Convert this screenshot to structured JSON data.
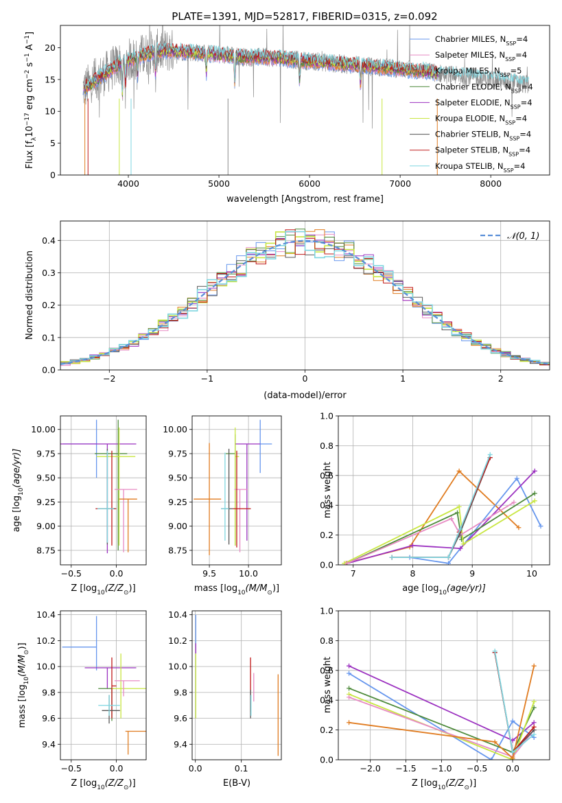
{
  "figure": {
    "title": "PLATE=1391, MJD=52817, FIBERID=0315, z=0.092"
  },
  "legend_spectrum": [
    {
      "label": "Chabrier MILES, N",
      "sub": "SSP",
      "tail": "=4",
      "color": "#6495ed"
    },
    {
      "label": "Salpeter MILES, N",
      "sub": "SSP",
      "tail": "=4",
      "color": "#e78ac3"
    },
    {
      "label": "Kroupa MILES, N",
      "sub": "SSP",
      "tail": "=5",
      "color": "#e07b1f"
    },
    {
      "label": "Chabrier ELODIE, N",
      "sub": "SSP",
      "tail": "=4",
      "color": "#4d8a3a"
    },
    {
      "label": "Salpeter ELODIE, N",
      "sub": "SSP",
      "tail": "=4",
      "color": "#9b30c0"
    },
    {
      "label": "Kroupa ELODIE, N",
      "sub": "SSP",
      "tail": "=4",
      "color": "#c8e640"
    },
    {
      "label": "Chabrier STELIB, N",
      "sub": "SSP",
      "tail": "=4",
      "color": "#555555"
    },
    {
      "label": "Salpeter STELIB, N",
      "sub": "SSP",
      "tail": "=4",
      "color": "#c01818"
    },
    {
      "label": "Kroupa STELIB, N",
      "sub": "SSP",
      "tail": "=4",
      "color": "#7ed6e0"
    }
  ],
  "legend_hist": {
    "label": "𝒩(0, 1)",
    "color": "#5a8fd8"
  },
  "chart_data": [
    {
      "id": "spectrum",
      "type": "line",
      "xlabel": "wavelength [Angstrom, rest frame]",
      "ylabel": "Flux [f",
      "ylabel_parts": [
        "Flux [f",
        "λ",
        "10",
        "−17",
        " erg cm",
        "−2",
        " s",
        "−1",
        " A",
        "−1",
        "]"
      ],
      "xlim": [
        3250,
        8650
      ],
      "ylim": [
        0,
        23.5
      ],
      "xticks": [
        4000,
        5000,
        6000,
        7000,
        8000
      ],
      "yticks": [
        0,
        5,
        10,
        15,
        20
      ],
      "grid": false,
      "continuum": {
        "x": [
          3500,
          3700,
          3900,
          4100,
          4300,
          4500,
          4700,
          4900,
          5100,
          5300,
          5500,
          5700,
          5900,
          6100,
          6300,
          6500,
          6700,
          6900,
          7100,
          7300,
          7500,
          7700,
          7900,
          8100,
          8300,
          8400
        ],
        "y": [
          13.5,
          15.5,
          17.5,
          18.5,
          19.5,
          19.5,
          19.3,
          19.0,
          18.8,
          18.5,
          18.5,
          18.3,
          18.0,
          17.8,
          17.5,
          17.3,
          17.0,
          16.8,
          16.5,
          16.3,
          15.8,
          15.5,
          15.2,
          14.9,
          14.5,
          14.2
        ]
      }
    },
    {
      "id": "residuals",
      "type": "histogram",
      "xlabel": "(data-model)/error",
      "ylabel": "Normed distribution",
      "xlim": [
        -2.5,
        2.5
      ],
      "ylim": [
        0,
        0.46
      ],
      "xticks": [
        -2,
        -1,
        0,
        1,
        2
      ],
      "yticks": [
        0.0,
        0.1,
        0.2,
        0.3,
        0.4
      ],
      "grid": true,
      "legend_position": "upper-right"
    },
    {
      "id": "age-vs-Z",
      "type": "errorbar",
      "xlabel": "Z [log",
      "xlabel_parts": [
        "Z [log",
        "10",
        "(Z/Z",
        "⊙",
        ")]"
      ],
      "ylabel_parts": [
        "age  [log",
        "10",
        "(age/yr)]"
      ],
      "xlim": [
        -0.62,
        0.33
      ],
      "ylim": [
        8.6,
        10.14
      ],
      "xticks": [
        -0.5,
        0.0
      ],
      "yticks": [
        8.75,
        9.0,
        9.25,
        9.5,
        9.75,
        10.0
      ],
      "grid": true,
      "points": [
        {
          "color": "#6495ed",
          "x": -0.22,
          "xerr": [
            0.37,
            0.0
          ],
          "y": 9.85,
          "yerr": [
            0.35,
            0.25
          ]
        },
        {
          "color": "#9b30c0",
          "x": -0.1,
          "xerr": [
            0.52,
            0.32
          ],
          "y": 9.85,
          "yerr": [
            1.13,
            0.0
          ]
        },
        {
          "color": "#4d8a3a",
          "x": 0.02,
          "xerr": [
            0.26,
            0.1
          ],
          "y": 9.75,
          "yerr": [
            1.0,
            0.35
          ]
        },
        {
          "color": "#c8e640",
          "x": 0.03,
          "xerr": [
            0.25,
            0.18
          ],
          "y": 9.72,
          "yerr": [
            0.92,
            0.3
          ]
        },
        {
          "color": "#e78ac3",
          "x": 0.08,
          "xerr": [
            0.1,
            0.15
          ],
          "y": 9.38,
          "yerr": [
            0.65,
            0.0
          ]
        },
        {
          "color": "#e07b1f",
          "x": 0.13,
          "xerr": [
            0.1,
            0.1
          ],
          "y": 9.28,
          "yerr": [
            0.55,
            0.0
          ]
        },
        {
          "color": "#c01818",
          "x": -0.05,
          "xerr": [
            0.18,
            0.05
          ],
          "y": 9.18,
          "yerr": [
            0.38,
            0.6
          ]
        },
        {
          "color": "#555555",
          "x": -0.1,
          "xerr": [
            0.1,
            0.08
          ],
          "y": 9.18,
          "yerr": [
            0.37,
            0.62
          ]
        },
        {
          "color": "#7ed6e0",
          "x": -0.1,
          "xerr": [
            0.11,
            0.07
          ],
          "y": 9.18,
          "yerr": [
            0.35,
            0.6
          ]
        }
      ]
    },
    {
      "id": "age-vs-mass",
      "type": "errorbar",
      "xlabel_parts": [
        "mass [log",
        "10",
        "(M/M",
        "⊙",
        ")]"
      ],
      "xlim": [
        9.28,
        10.42
      ],
      "ylim": [
        8.6,
        10.14
      ],
      "xticks": [
        9.5,
        10.0
      ],
      "yticks": [
        8.75,
        9.0,
        9.25,
        9.5,
        9.75,
        10.0
      ],
      "grid": true,
      "points": [
        {
          "color": "#6495ed",
          "x": 10.15,
          "xerr": [
            0.0,
            0.15
          ],
          "y": 9.85,
          "yerr": [
            0.3,
            0.25
          ]
        },
        {
          "color": "#9b30c0",
          "x": 9.98,
          "xerr": [
            0.15,
            0.17
          ],
          "y": 9.85,
          "yerr": [
            1.0,
            0.0
          ]
        },
        {
          "color": "#4d8a3a",
          "x": 9.83,
          "xerr": [
            0.12,
            0.0
          ],
          "y": 9.75,
          "yerr": [
            0.95,
            0.2
          ]
        },
        {
          "color": "#c8e640",
          "x": 9.83,
          "xerr": [
            0.0,
            0.05
          ],
          "y": 9.72,
          "yerr": [
            0.92,
            0.3
          ]
        },
        {
          "color": "#e78ac3",
          "x": 9.89,
          "xerr": [
            0.07,
            0.1
          ],
          "y": 9.38,
          "yerr": [
            0.65,
            0.0
          ]
        },
        {
          "color": "#e07b1f",
          "x": 9.5,
          "xerr": [
            0.2,
            0.15
          ],
          "y": 9.28,
          "yerr": [
            0.58,
            0.58
          ]
        },
        {
          "color": "#c01818",
          "x": 9.85,
          "xerr": [
            0.05,
            0.18
          ],
          "y": 9.18,
          "yerr": [
            0.4,
            0.6
          ]
        },
        {
          "color": "#555555",
          "x": 9.75,
          "xerr": [
            0.1,
            0.05
          ],
          "y": 9.18,
          "yerr": [
            0.37,
            0.62
          ]
        },
        {
          "color": "#7ed6e0",
          "x": 9.7,
          "xerr": [
            0.05,
            0.05
          ],
          "y": 9.18,
          "yerr": [
            0.33,
            0.58
          ]
        }
      ]
    },
    {
      "id": "weight-vs-age",
      "type": "line",
      "xlabel_parts": [
        "age  [log",
        "10",
        "(age/yr)]"
      ],
      "ylabel": "mass weight",
      "xlim": [
        6.75,
        10.3
      ],
      "ylim": [
        0,
        1.0
      ],
      "xticks": [
        7,
        8,
        9,
        10
      ],
      "yticks": [
        0.0,
        0.2,
        0.4,
        0.6,
        0.8,
        1.0
      ],
      "grid": true,
      "series": [
        {
          "color": "#e07b1f",
          "x": [
            6.88,
            7.95,
            8.78,
            9.78
          ],
          "y": [
            0.01,
            0.12,
            0.63,
            0.25
          ]
        },
        {
          "color": "#6495ed",
          "x": [
            7.95,
            8.6,
            9.75,
            10.15
          ],
          "y": [
            0.05,
            0.01,
            0.58,
            0.26
          ]
        },
        {
          "color": "#9b30c0",
          "x": [
            6.9,
            8.0,
            8.8,
            10.05
          ],
          "y": [
            0.01,
            0.13,
            0.11,
            0.63
          ]
        },
        {
          "color": "#4d8a3a",
          "x": [
            6.9,
            8.75,
            8.82,
            10.05
          ],
          "y": [
            0.01,
            0.35,
            0.17,
            0.48
          ]
        },
        {
          "color": "#c8e640",
          "x": [
            6.85,
            8.78,
            8.85,
            10.05
          ],
          "y": [
            0.01,
            0.39,
            0.14,
            0.43
          ]
        },
        {
          "color": "#e78ac3",
          "x": [
            6.9,
            8.65,
            8.8,
            9.7
          ],
          "y": [
            0.01,
            0.31,
            0.2,
            0.42
          ]
        },
        {
          "color": "#555555",
          "x": [
            7.65,
            8.6,
            8.78,
            9.3
          ],
          "y": [
            0.05,
            0.05,
            0.2,
            0.72
          ]
        },
        {
          "color": "#c01818",
          "x": [
            7.65,
            8.6,
            8.78,
            9.3
          ],
          "y": [
            0.05,
            0.05,
            0.22,
            0.72
          ]
        },
        {
          "color": "#7ed6e0",
          "x": [
            7.65,
            8.6,
            8.8,
            9.3
          ],
          "y": [
            0.05,
            0.05,
            0.24,
            0.74
          ]
        }
      ]
    },
    {
      "id": "mass-vs-Z",
      "type": "errorbar",
      "xlabel_parts": [
        "Z [log",
        "10",
        "(Z/Z",
        "⊙",
        ")]"
      ],
      "ylabel_parts": [
        "mass [log",
        "10",
        "(M/M",
        "⊙",
        ")]"
      ],
      "xlim": [
        -0.62,
        0.33
      ],
      "ylim": [
        9.28,
        10.43
      ],
      "xticks": [
        -0.5,
        0.0
      ],
      "yticks": [
        9.4,
        9.6,
        9.8,
        10.0,
        10.2,
        10.4
      ],
      "grid": true,
      "points": [
        {
          "color": "#6495ed",
          "x": -0.22,
          "xerr": [
            0.38,
            0.0
          ],
          "y": 10.15,
          "yerr": [
            0.18,
            0.24
          ]
        },
        {
          "color": "#9b30c0",
          "x": -0.1,
          "xerr": [
            0.25,
            0.32
          ],
          "y": 9.99,
          "yerr": [
            0.16,
            0.0
          ]
        },
        {
          "color": "#4d8a3a",
          "x": -0.05,
          "xerr": [
            0.15,
            0.02
          ],
          "y": 9.83,
          "yerr": [
            0.25,
            0.0
          ]
        },
        {
          "color": "#c8e640",
          "x": 0.05,
          "xerr": [
            0.1,
            0.28
          ],
          "y": 9.83,
          "yerr": [
            0.23,
            0.27
          ]
        },
        {
          "color": "#e78ac3",
          "x": 0.08,
          "xerr": [
            0.1,
            0.18
          ],
          "y": 9.89,
          "yerr": [
            0.12,
            0.0
          ]
        },
        {
          "color": "#e07b1f",
          "x": 0.13,
          "xerr": [
            0.03,
            0.2
          ],
          "y": 9.5,
          "yerr": [
            0.18,
            0.0
          ]
        },
        {
          "color": "#c01818",
          "x": -0.05,
          "xerr": [
            0.0,
            0.05
          ],
          "y": 9.85,
          "yerr": [
            0.25,
            0.22
          ]
        },
        {
          "color": "#555555",
          "x": -0.08,
          "xerr": [
            0.08,
            0.12
          ],
          "y": 9.66,
          "yerr": [
            0.1,
            0.12
          ]
        },
        {
          "color": "#7ed6e0",
          "x": -0.08,
          "xerr": [
            0.12,
            0.12
          ],
          "y": 9.7,
          "yerr": [
            0.08,
            0.08
          ]
        }
      ]
    },
    {
      "id": "mass-vs-EBV",
      "type": "errorbar",
      "xlabel": "E(B-V)",
      "xlim": [
        -0.007,
        0.187
      ],
      "ylim": [
        9.28,
        10.43
      ],
      "xticks": [
        0.0,
        0.1
      ],
      "yticks": [
        9.4,
        9.6,
        9.8,
        10.0,
        10.2,
        10.4
      ],
      "grid": true,
      "points": [
        {
          "color": "#6495ed",
          "x": 0.001,
          "xerr": [
            0.0,
            0.0
          ],
          "y": 10.15,
          "yerr": [
            0.0,
            0.25
          ]
        },
        {
          "color": "#9b30c0",
          "x": 0.001,
          "xerr": [
            0.0,
            0.0
          ],
          "y": 10.1,
          "yerr": [
            0.0,
            0.08
          ]
        },
        {
          "color": "#c8e640",
          "x": 0.001,
          "xerr": [
            0.0,
            0.0
          ],
          "y": 9.85,
          "yerr": [
            0.25,
            0.25
          ]
        },
        {
          "color": "#e78ac3",
          "x": 0.127,
          "xerr": [
            0.0,
            0.0
          ],
          "y": 9.85,
          "yerr": [
            0.12,
            0.1
          ]
        },
        {
          "color": "#c01818",
          "x": 0.12,
          "xerr": [
            0.0,
            0.0
          ],
          "y": 9.85,
          "yerr": [
            0.2,
            0.22
          ]
        },
        {
          "color": "#555555",
          "x": 0.12,
          "xerr": [
            0.0,
            0.0
          ],
          "y": 9.7,
          "yerr": [
            0.1,
            0.12
          ]
        },
        {
          "color": "#7ed6e0",
          "x": 0.121,
          "xerr": [
            0.0,
            0.0
          ],
          "y": 9.7,
          "yerr": [
            0.08,
            0.08
          ]
        },
        {
          "color": "#e07b1f",
          "x": 0.18,
          "xerr": [
            0.0,
            0.0
          ],
          "y": 9.63,
          "yerr": [
            0.32,
            0.31
          ]
        }
      ]
    },
    {
      "id": "weight-vs-Z",
      "type": "line",
      "xlabel_parts": [
        "Z [log",
        "10",
        "(Z/Z",
        "⊙",
        ")]"
      ],
      "ylabel": "mass weight",
      "xlim": [
        -2.45,
        0.52
      ],
      "ylim": [
        0,
        1.0
      ],
      "xticks": [
        -2.0,
        -1.5,
        -1.0,
        -0.5,
        0.0
      ],
      "yticks": [
        0.0,
        0.2,
        0.4,
        0.6,
        0.8,
        1.0
      ],
      "grid": true,
      "series": [
        {
          "color": "#9b30c0",
          "x": [
            -2.3,
            0.0,
            0.3
          ],
          "y": [
            0.63,
            0.13,
            0.25
          ]
        },
        {
          "color": "#6495ed",
          "x": [
            -2.3,
            -0.3,
            0.0,
            0.3
          ],
          "y": [
            0.58,
            0.0,
            0.26,
            0.15
          ]
        },
        {
          "color": "#4d8a3a",
          "x": [
            -2.3,
            0.0,
            0.3
          ],
          "y": [
            0.48,
            0.05,
            0.35
          ]
        },
        {
          "color": "#c8e640",
          "x": [
            -2.3,
            0.0,
            0.3
          ],
          "y": [
            0.44,
            0.0,
            0.39
          ]
        },
        {
          "color": "#e78ac3",
          "x": [
            -2.3,
            0.0,
            0.3
          ],
          "y": [
            0.42,
            0.02,
            0.2
          ]
        },
        {
          "color": "#e07b1f",
          "x": [
            -2.3,
            -0.25,
            0.0,
            0.3
          ],
          "y": [
            0.25,
            0.12,
            0.01,
            0.63
          ]
        },
        {
          "color": "#555555",
          "x": [
            -0.25,
            0.0,
            0.3
          ],
          "y": [
            0.72,
            0.05,
            0.2
          ]
        },
        {
          "color": "#c01818",
          "x": [
            -0.25,
            0.0,
            0.3
          ],
          "y": [
            0.72,
            0.05,
            0.22
          ]
        },
        {
          "color": "#7ed6e0",
          "x": [
            -0.25,
            0.0,
            0.3
          ],
          "y": [
            0.73,
            0.05,
            0.17
          ]
        }
      ]
    }
  ]
}
